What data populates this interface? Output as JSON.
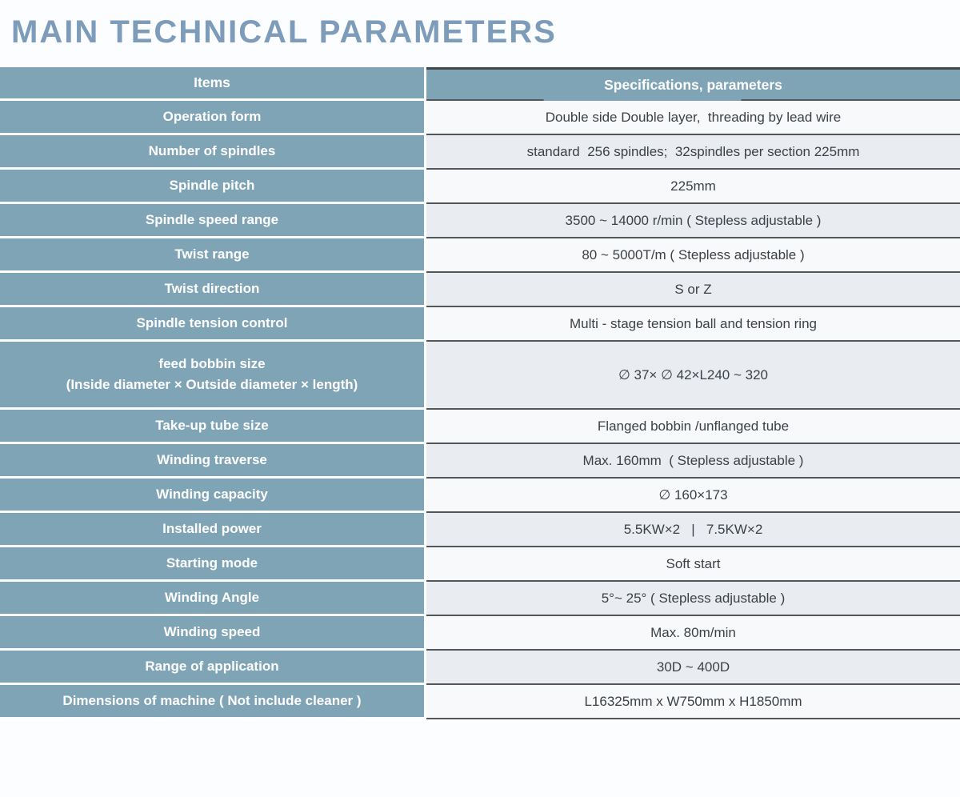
{
  "page": {
    "title": "MAIN TECHNICAL PARAMETERS"
  },
  "colors": {
    "header_blue": "#7fa4b5",
    "row_light": "#f7f9fb",
    "row_shaded": "#e9edf2",
    "border_dark": "#53575a",
    "title_text": "#7d9cba",
    "value_text": "#3c4146"
  },
  "table": {
    "columns": [
      "Items",
      "Specifications,  parameters"
    ],
    "rows": [
      {
        "item": "Operation form",
        "value": "Double side Double layer,  threading by lead wire"
      },
      {
        "item": "Number of spindles",
        "value": "standard  256 spindles;  32spindles per section 225mm"
      },
      {
        "item": "Spindle pitch",
        "value": "225mm"
      },
      {
        "item": "Spindle speed range",
        "value": "3500 ~ 14000 r/min ( Stepless adjustable )"
      },
      {
        "item": "Twist range",
        "value": "80 ~ 5000T/m ( Stepless adjustable )"
      },
      {
        "item": "Twist direction",
        "value": "S or Z"
      },
      {
        "item": "Spindle tension control",
        "value": "Multi - stage tension ball and tension ring"
      },
      {
        "item": "feed bobbin size",
        "item_line2": "(Inside diameter × Outside diameter × length)",
        "value": "∅ 37× ∅ 42×L240 ~ 320"
      },
      {
        "item": "Take-up tube size",
        "value": "Flanged bobbin /unflanged tube"
      },
      {
        "item": "Winding traverse",
        "value": "Max. 160mm  ( Stepless adjustable )"
      },
      {
        "item": "Winding capacity",
        "value": "∅ 160×173"
      },
      {
        "item": "Installed power",
        "value": "5.5KW×2   |   7.5KW×2"
      },
      {
        "item": "Starting mode",
        "value": "Soft start"
      },
      {
        "item": "Winding Angle",
        "value": "5°~ 25° ( Stepless adjustable )"
      },
      {
        "item": "Winding speed",
        "value": "Max. 80m/min"
      },
      {
        "item": "Range of application",
        "value": "30D ~ 400D"
      },
      {
        "item": "Dimensions of machine ( Not include cleaner )",
        "value": "L16325mm x W750mm x H1850mm"
      }
    ]
  }
}
